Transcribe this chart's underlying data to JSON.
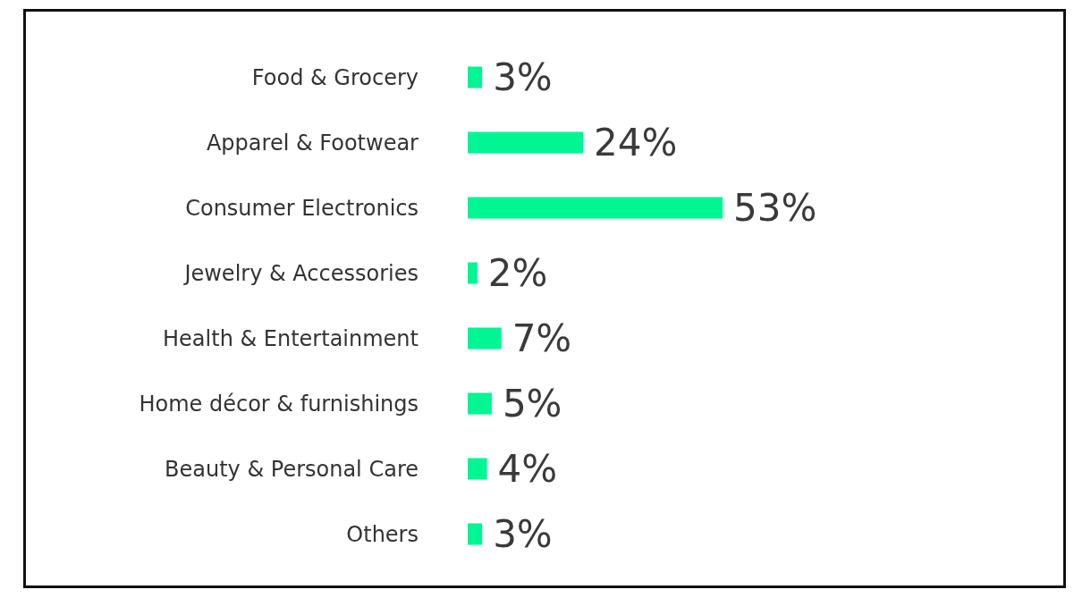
{
  "chart_data": {
    "type": "bar",
    "orientation": "horizontal",
    "categories": [
      "Food & Grocery",
      "Apparel & Footwear",
      "Consumer Electronics",
      "Jewelry & Accessories",
      "Health & Entertainment",
      "Home décor & furnishings",
      "Beauty & Personal Care",
      "Others"
    ],
    "values": [
      3,
      24,
      53,
      2,
      7,
      5,
      4,
      3
    ],
    "value_labels": [
      "3%",
      "24%",
      "53%",
      "2%",
      "7%",
      "5%",
      "4%",
      "3%"
    ],
    "color": "#00f593"
  }
}
